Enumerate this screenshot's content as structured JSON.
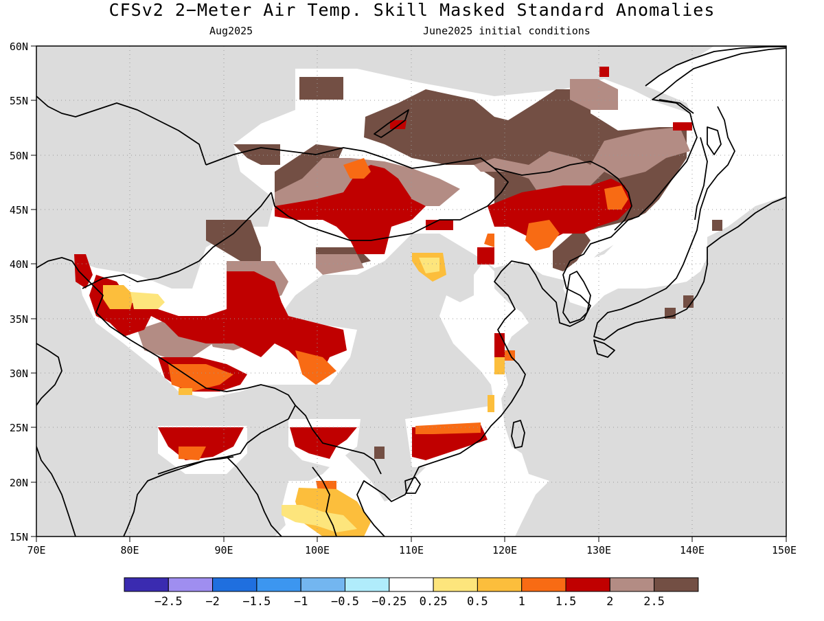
{
  "title": "CFSv2 2−Meter Air Temp. Skill Masked Standard Anomalies",
  "subtitle_month": "Aug2025",
  "subtitle_initial": "June2025 initial conditions",
  "axes": {
    "lat_labels": [
      "60N",
      "55N",
      "50N",
      "45N",
      "40N",
      "35N",
      "30N",
      "25N",
      "20N",
      "15N"
    ],
    "lon_labels": [
      "70E",
      "80E",
      "90E",
      "100E",
      "110E",
      "120E",
      "130E",
      "140E",
      "150E"
    ]
  },
  "colors": {
    "land_mask": "#dcdcdc",
    "ocean": "#ffffff",
    "coast": "#000000",
    "grid": "#999999"
  },
  "colorbar": {
    "bins": [
      "#3a2bb0",
      "#9f8ef0",
      "#1f6fdf",
      "#3c96f0",
      "#73b6f0",
      "#b0ecfb",
      "#ffffff",
      "#fde57c",
      "#fcbe3c",
      "#f86b14",
      "#c00000",
      "#b38c84",
      "#734f44"
    ],
    "labels": [
      "−2.5",
      "−2",
      "−1.5",
      "−1",
      "−0.5",
      "−0.25",
      "0.25",
      "0.5",
      "1",
      "1.5",
      "2",
      "2.5"
    ]
  }
}
